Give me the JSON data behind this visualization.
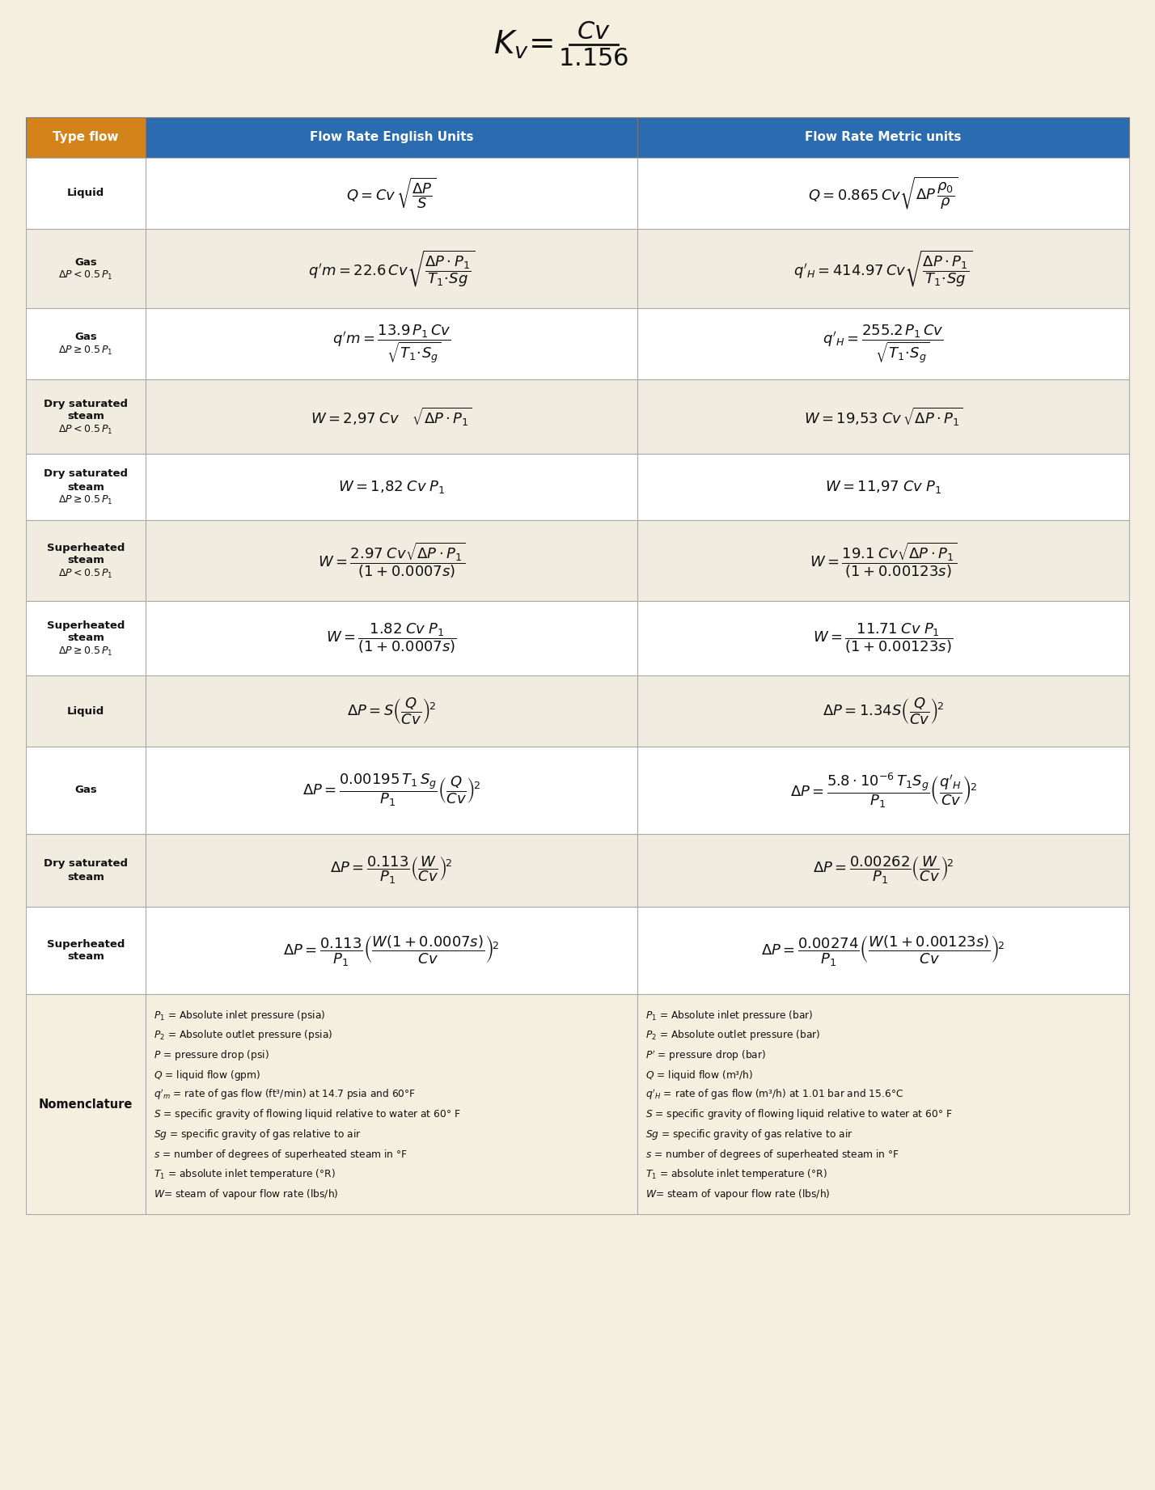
{
  "bg_color": "#f5efe0",
  "header_col1_color": "#d4831a",
  "header_col23_color": "#2b6cb0",
  "row_bg_white": "#ffffff",
  "row_bg_light": "#f0ece0",
  "nomenclature_bg": "#f5efe0",
  "col1_header": "Type flow",
  "col2_header": "Flow Rate English Units",
  "col3_header": "Flow Rate Metric units",
  "rows": [
    {
      "col1_lines": [
        "Liquid"
      ],
      "col2": "Q=Cv\\,\\sqrt{\\dfrac{\\Delta P}{S}}",
      "col3": "Q=0.865\\,Cv\\sqrt{\\Delta P\\,\\dfrac{\\rho_0}{\\rho}}"
    },
    {
      "col1_lines": [
        "Gas",
        "$\\Delta P < 0.5\\,P_1$"
      ],
      "col2": "q'm=22.6\\,Cv\\sqrt{\\dfrac{\\Delta P \\cdot P_1}{T_1\\!\\cdot\\!Sg}}",
      "col3": "q'_H=414.97\\,Cv\\sqrt{\\dfrac{\\Delta P \\cdot P_1}{T_1\\!\\cdot\\!Sg}}"
    },
    {
      "col1_lines": [
        "Gas",
        "$\\Delta P \\geq 0.5\\,P_1$"
      ],
      "col2": "q'm=\\dfrac{13.9\\,P_1\\,Cv}{\\sqrt{T_1\\!\\cdot\\! S_g}}",
      "col3": "q'_H=\\dfrac{255.2\\,P_1\\,Cv}{\\sqrt{T_1\\!\\cdot\\! S_g}}"
    },
    {
      "col1_lines": [
        "Dry saturated",
        "steam",
        "$\\Delta P < 0.5\\,P_1$"
      ],
      "col2": "W=2{,}97\\;Cv\\quad\\sqrt{\\Delta P \\cdot P_1}",
      "col3": "W=19{,}53\\;Cv\\,\\sqrt{\\Delta P \\cdot P_1}"
    },
    {
      "col1_lines": [
        "Dry saturated",
        "steam",
        "$\\Delta P \\geq 0.5\\,P_1$"
      ],
      "col2": "W=1{,}82\\;Cv\\;P_1",
      "col3": "W=11{,}97\\;Cv\\;P_1"
    },
    {
      "col1_lines": [
        "Superheated",
        "steam",
        "$\\Delta P < 0.5\\,P_1$"
      ],
      "col2": "W=\\dfrac{2.97\\;Cv\\sqrt{\\Delta P \\cdot P_1}}{(1+0.0007s)}",
      "col3": "W=\\dfrac{19.1\\;Cv\\sqrt{\\Delta P \\cdot P_1}}{(1+0.00123s)}"
    },
    {
      "col1_lines": [
        "Superheated",
        "steam",
        "$\\Delta P \\geq 0.5\\,P_1$"
      ],
      "col2": "W=\\dfrac{1.82\\;Cv\\;P_1}{(1+0.0007s)}",
      "col3": "W=\\dfrac{11.71\\;Cv\\;P_1}{(1+0.00123s)}"
    },
    {
      "col1_lines": [
        "Liquid"
      ],
      "col2": "\\Delta P=S\\left(\\dfrac{Q}{Cv}\\right)^{\\!2}",
      "col3": "\\Delta P=1.34S\\left(\\dfrac{Q}{Cv}\\right)^{\\!2}"
    },
    {
      "col1_lines": [
        "Gas"
      ],
      "col2": "\\Delta P=\\dfrac{0.00195\\,T_1\\,S_g}{P_1}\\left(\\dfrac{Q}{Cv}\\right)^{\\!2}",
      "col3": "\\Delta P=\\dfrac{5.8\\cdot10^{-6}\\,T_1 S_g}{P_1}\\left(\\dfrac{q'_H}{Cv}\\right)^{\\!2}"
    },
    {
      "col1_lines": [
        "Dry saturated",
        "steam"
      ],
      "col2": "\\Delta P=\\dfrac{0.113}{P_1}\\left(\\dfrac{W}{Cv}\\right)^{\\!2}",
      "col3": "\\Delta P=\\dfrac{0.00262}{P_1}\\left(\\dfrac{W}{Cv}\\right)^{\\!2}"
    },
    {
      "col1_lines": [
        "Superheated",
        "steam"
      ],
      "col2": "\\Delta P=\\dfrac{0.113}{P_1}\\left(\\dfrac{W(1+0.0007s)}{Cv}\\right)^{\\!2}",
      "col3": "\\Delta P=\\dfrac{0.00274}{P_1}\\left(\\dfrac{W(1+0.00123s)}{Cv}\\right)^{\\!2}"
    }
  ],
  "nomenclature_english": [
    "$P_1$ = Absolute inlet pressure (psia)",
    "$P_2$ = Absolute outlet pressure (psia)",
    "$P$ = pressure drop (psi)",
    "$Q$ = liquid flow (gpm)",
    "$q'_m$ = rate of gas flow (ft³/min) at 14.7 psia and 60°F",
    "$S$ = specific gravity of flowing liquid relative to water at 60° F",
    "$Sg$ = specific gravity of gas relative to air",
    "$s$ = number of degrees of superheated steam in °F",
    "$T_1$ = absolute inlet temperature (°R)",
    "$W$= steam of vapour flow rate (lbs/h)"
  ],
  "nomenclature_metric": [
    "$P_1$ = Absolute inlet pressure (bar)",
    "$P_2$ = Absolute outlet pressure (bar)",
    "$P'$ = pressure drop (bar)",
    "$Q$ = liquid flow (m³/h)",
    "$q'_H$ = rate of gas flow (m³/h) at 1.01 bar and 15.6°C",
    "$S$ = specific gravity of flowing liquid relative to water at 60° F",
    "$Sg$ = specific gravity of gas relative to air",
    "$s$ = number of degrees of superheated steam in °F",
    "$T_1$ = absolute inlet temperature (°R)",
    "$W$= steam of vapour flow rate (lbs/h)"
  ]
}
